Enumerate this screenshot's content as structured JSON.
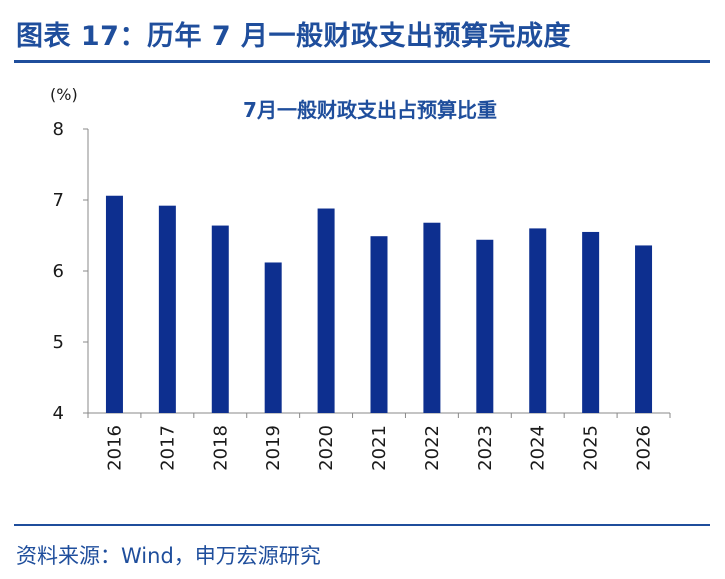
{
  "figure": {
    "title": "图表 17：历年 7 月一般财政支出预算完成度",
    "source": "资料来源：Wind，申万宏源研究"
  },
  "colors": {
    "bar": "#0d2f8f",
    "heading": "#1f4e9c",
    "axis": "#888888"
  },
  "chart_data": {
    "type": "bar",
    "title": "7月一般财政支出占预算比重",
    "ylabel": "(%)",
    "xlabel": "",
    "categories": [
      "2016",
      "2017",
      "2018",
      "2019",
      "2020",
      "2021",
      "2022",
      "2023",
      "2024",
      "2025",
      "2026"
    ],
    "values": [
      7.06,
      6.92,
      6.64,
      6.12,
      6.88,
      6.49,
      6.68,
      6.44,
      6.6,
      6.55,
      6.36
    ],
    "ylim": [
      4,
      8
    ],
    "yticks": [
      "4",
      "5",
      "6",
      "7",
      "8"
    ],
    "grid": false,
    "legend": "none"
  }
}
